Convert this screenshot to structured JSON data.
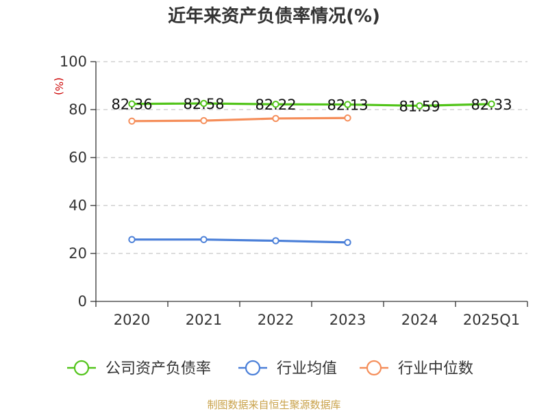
{
  "chart_data": {
    "type": "line",
    "title": "近年来资产负债率情况(%)",
    "ylabel": "(%)",
    "xlabel": "",
    "categories": [
      "2020",
      "2021",
      "2022",
      "2023",
      "2024",
      "2025Q1"
    ],
    "ylim": [
      0,
      100
    ],
    "yticks": [
      0,
      20,
      40,
      60,
      80,
      100
    ],
    "grid": true,
    "legend_position": "bottom",
    "series": [
      {
        "name": "公司资产负债率",
        "color": "#52c41a",
        "values": [
          82.36,
          82.58,
          82.22,
          82.13,
          81.59,
          82.33
        ],
        "show_labels": true
      },
      {
        "name": "行业均值",
        "color": "#4a7fd8",
        "values": [
          25.8,
          25.8,
          25.3,
          24.6,
          null,
          null
        ],
        "show_labels": false
      },
      {
        "name": "行业中位数",
        "color": "#f58e5a",
        "values": [
          75.2,
          75.4,
          76.3,
          76.5,
          null,
          null
        ],
        "show_labels": false
      }
    ]
  },
  "footer": {
    "source": "制图数据来自恒生聚源数据库"
  }
}
